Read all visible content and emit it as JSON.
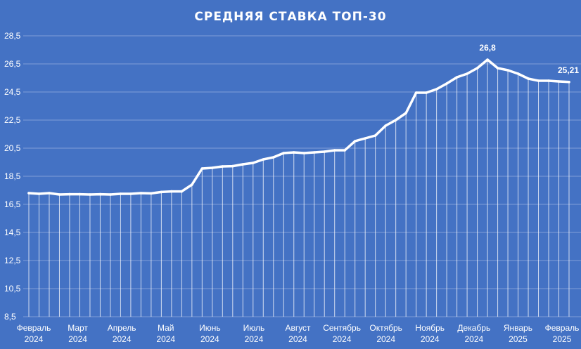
{
  "chart_data": {
    "type": "line",
    "title": "СРЕДНЯЯ СТАВКА ТОП-30",
    "xlabel": "",
    "ylabel": "",
    "ylim": [
      8.5,
      28.5
    ],
    "y_ticks": [
      "8,5",
      "10,5",
      "12,5",
      "14,5",
      "16,5",
      "18,5",
      "20,5",
      "22,5",
      "24,5",
      "26,5",
      "28,5"
    ],
    "grid": true,
    "x_tick_labels": [
      {
        "month": "Февраль",
        "year": "2024"
      },
      {
        "month": "Март",
        "year": "2024"
      },
      {
        "month": "Апрель",
        "year": "2024"
      },
      {
        "month": "Май",
        "year": "2024"
      },
      {
        "month": "Июнь",
        "year": "2024"
      },
      {
        "month": "Июль",
        "year": "2024"
      },
      {
        "month": "Август",
        "year": "2024"
      },
      {
        "month": "Сентябрь",
        "year": "2024"
      },
      {
        "month": "Октябрь",
        "year": "2024"
      },
      {
        "month": "Ноябрь",
        "year": "2024"
      },
      {
        "month": "Декабрь",
        "year": "2024"
      },
      {
        "month": "Январь",
        "year": "2025"
      },
      {
        "month": "Февраль",
        "year": "2025"
      }
    ],
    "series": [
      {
        "values": [
          17.3,
          17.25,
          17.3,
          17.2,
          17.22,
          17.22,
          17.2,
          17.22,
          17.2,
          17.25,
          17.25,
          17.3,
          17.28,
          17.38,
          17.42,
          17.42,
          17.9,
          19.05,
          19.1,
          19.2,
          19.22,
          19.35,
          19.45,
          19.7,
          19.85,
          20.15,
          20.2,
          20.15,
          20.2,
          20.25,
          20.35,
          20.35,
          21.0,
          21.2,
          21.4,
          22.1,
          22.5,
          23.0,
          24.45,
          24.45,
          24.7,
          25.1,
          25.55,
          25.8,
          26.2,
          26.8,
          26.2,
          26.05,
          25.8,
          25.45,
          25.3,
          25.3,
          25.25,
          25.21
        ],
        "data_labels": [
          {
            "index": 45,
            "text": "26,8"
          },
          {
            "index": 53,
            "text": "25,21"
          }
        ]
      }
    ],
    "colors": {
      "background": "#4472c4",
      "line": "#ffffff",
      "grid": "#8faadc"
    }
  }
}
